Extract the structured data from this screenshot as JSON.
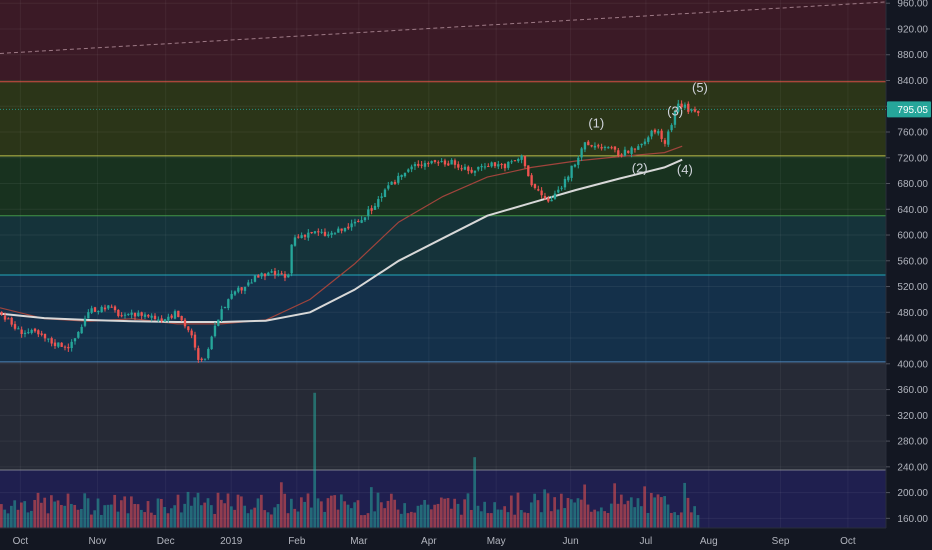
{
  "chart_data": {
    "type": "candlestick",
    "y_axis": {
      "side": "right",
      "range": [
        145,
        965
      ],
      "ticks": [
        "960.00",
        "920.00",
        "880.00",
        "840.00",
        "800.00",
        "760.00",
        "720.00",
        "680.00",
        "640.00",
        "600.00",
        "560.00",
        "520.00",
        "480.00",
        "440.00",
        "400.00",
        "360.00",
        "320.00",
        "280.00",
        "240.00",
        "200.00",
        "160.00"
      ]
    },
    "x_axis": {
      "ticks": [
        "Oct",
        "Nov",
        "Dec",
        "2019",
        "Feb",
        "Mar",
        "Apr",
        "May",
        "Jun",
        "Jul",
        "Aug",
        "Sep",
        "Oct"
      ]
    },
    "last_price": 795.05,
    "last_price_label": "795.05",
    "zones": [
      {
        "from": 840,
        "to": 965,
        "color": "#3b1a26"
      },
      {
        "from": 723,
        "to": 840,
        "color": "#2b3518"
      },
      {
        "from": 630,
        "to": 723,
        "color": "#18321f"
      },
      {
        "from": 538,
        "to": 630,
        "color": "#15333a"
      },
      {
        "from": 403,
        "to": 538,
        "color": "#14304a"
      },
      {
        "from": 235,
        "to": 403,
        "color": "#262a36"
      },
      {
        "from": 145,
        "to": 235,
        "color": "#1f1f4f"
      }
    ],
    "levels": [
      {
        "value": 838,
        "color": "#ff5252"
      },
      {
        "value": 723,
        "color": "#e6e65a"
      },
      {
        "value": 630,
        "color": "#4caf50"
      },
      {
        "value": 538,
        "color": "#26c6da"
      },
      {
        "value": 403,
        "color": "#5b9bd5"
      },
      {
        "value": 235,
        "color": "#9598a1"
      }
    ],
    "trendline": {
      "from": [
        0,
        882
      ],
      "to": [
        1,
        962
      ],
      "color": "#9e7a86",
      "style": "dashed"
    },
    "ma_long": {
      "name": "",
      "color": "#d8d8d8",
      "points": [
        [
          0,
          478
        ],
        [
          0.05,
          471
        ],
        [
          0.1,
          468
        ],
        [
          0.15,
          466
        ],
        [
          0.2,
          465
        ],
        [
          0.25,
          465
        ],
        [
          0.3,
          467
        ],
        [
          0.35,
          480
        ],
        [
          0.4,
          515
        ],
        [
          0.45,
          560
        ],
        [
          0.5,
          595
        ],
        [
          0.55,
          630
        ],
        [
          0.6,
          650
        ],
        [
          0.65,
          670
        ],
        [
          0.7,
          688
        ],
        [
          0.75,
          705
        ],
        [
          0.77,
          717
        ]
      ]
    },
    "ma_short": {
      "name": "",
      "color": "#a0443c",
      "points": [
        [
          0,
          487
        ],
        [
          0.05,
          470
        ],
        [
          0.1,
          466
        ],
        [
          0.15,
          470
        ],
        [
          0.2,
          462
        ],
        [
          0.25,
          462
        ],
        [
          0.3,
          468
        ],
        [
          0.35,
          500
        ],
        [
          0.4,
          555
        ],
        [
          0.45,
          620
        ],
        [
          0.5,
          660
        ],
        [
          0.55,
          690
        ],
        [
          0.6,
          705
        ],
        [
          0.65,
          715
        ],
        [
          0.7,
          722
        ],
        [
          0.75,
          728
        ],
        [
          0.77,
          738
        ]
      ]
    },
    "price_path": [
      [
        0,
        480
      ],
      [
        0.02,
        452
      ],
      [
        0.04,
        447
      ],
      [
        0.06,
        432
      ],
      [
        0.08,
        428
      ],
      [
        0.1,
        480
      ],
      [
        0.12,
        490
      ],
      [
        0.14,
        472
      ],
      [
        0.16,
        478
      ],
      [
        0.18,
        470
      ],
      [
        0.2,
        478
      ],
      [
        0.215,
        448
      ],
      [
        0.225,
        398
      ],
      [
        0.235,
        420
      ],
      [
        0.25,
        488
      ],
      [
        0.27,
        515
      ],
      [
        0.29,
        535
      ],
      [
        0.31,
        540
      ],
      [
        0.325,
        532
      ],
      [
        0.33,
        595
      ],
      [
        0.35,
        605
      ],
      [
        0.37,
        600
      ],
      [
        0.39,
        610
      ],
      [
        0.41,
        625
      ],
      [
        0.43,
        660
      ],
      [
        0.45,
        690
      ],
      [
        0.47,
        710
      ],
      [
        0.49,
        715
      ],
      [
        0.51,
        712
      ],
      [
        0.53,
        698
      ],
      [
        0.55,
        712
      ],
      [
        0.57,
        708
      ],
      [
        0.59,
        722
      ],
      [
        0.6,
        678
      ],
      [
        0.62,
        650
      ],
      [
        0.64,
        690
      ],
      [
        0.66,
        740
      ],
      [
        0.68,
        738
      ],
      [
        0.7,
        726
      ],
      [
        0.72,
        734
      ],
      [
        0.74,
        765
      ],
      [
        0.75,
        742
      ],
      [
        0.765,
        805
      ],
      [
        0.785,
        790
      ],
      [
        0.79,
        797
      ]
    ],
    "volume": {
      "range": [
        145,
        380
      ],
      "spike_positions": [
        0.355,
        0.535,
        0.612,
        0.77
      ],
      "spike_values": [
        355,
        255,
        205,
        215
      ]
    },
    "annotations": [
      "(1)",
      "(2)",
      "(3)",
      "(4)",
      "(5)"
    ]
  }
}
